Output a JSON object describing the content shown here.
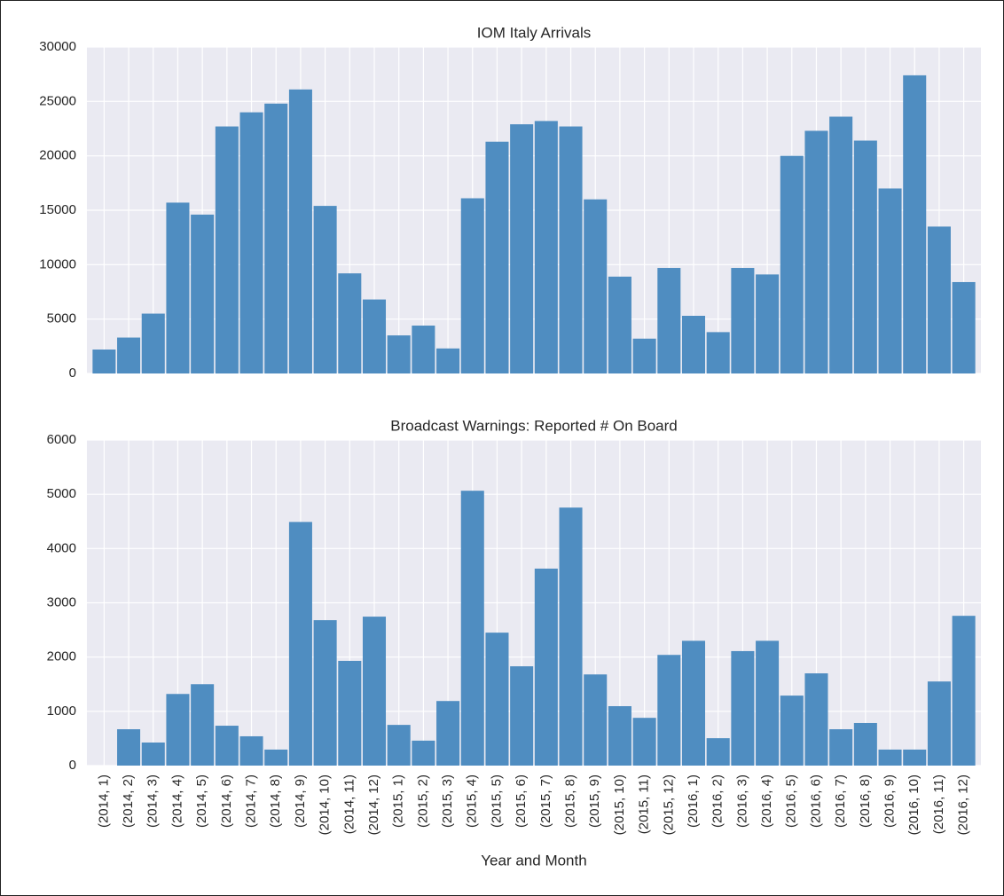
{
  "chart_data": [
    {
      "type": "bar",
      "title": "IOM Italy Arrivals",
      "color": "#4f8dc1",
      "values": [
        2200,
        3300,
        5500,
        15700,
        14600,
        22700,
        24000,
        24800,
        26100,
        15400,
        9200,
        6800,
        3500,
        4400,
        2300,
        16100,
        21300,
        22900,
        23200,
        22700,
        16000,
        8900,
        3200,
        9700,
        5300,
        3800,
        9700,
        9100,
        20000,
        22300,
        23600,
        21400,
        17000,
        27400,
        13500,
        8400
      ],
      "ylim": [
        0,
        30000
      ],
      "yticks": [
        0,
        5000,
        10000,
        15000,
        20000,
        25000,
        30000
      ],
      "grid": true
    },
    {
      "type": "bar",
      "title": "Broadcast Warnings: Reported # On Board",
      "color": "#4f8dc1",
      "xlabel": "Year and Month",
      "categories": [
        "(2014, 1)",
        "(2014, 2)",
        "(2014, 3)",
        "(2014, 4)",
        "(2014, 5)",
        "(2014, 6)",
        "(2014, 7)",
        "(2014, 8)",
        "(2014, 9)",
        "(2014, 10)",
        "(2014, 11)",
        "(2014, 12)",
        "(2015, 1)",
        "(2015, 2)",
        "(2015, 3)",
        "(2015, 4)",
        "(2015, 5)",
        "(2015, 6)",
        "(2015, 7)",
        "(2015, 8)",
        "(2015, 9)",
        "(2015, 10)",
        "(2015, 11)",
        "(2015, 12)",
        "(2016, 1)",
        "(2016, 2)",
        "(2016, 3)",
        "(2016, 4)",
        "(2016, 5)",
        "(2016, 6)",
        "(2016, 7)",
        "(2016, 8)",
        "(2016, 9)",
        "(2016, 10)",
        "(2016, 11)",
        "(2016, 12)"
      ],
      "values": [
        0,
        670,
        425,
        1320,
        1500,
        735,
        540,
        295,
        4490,
        2680,
        1930,
        2745,
        750,
        460,
        1190,
        5065,
        2450,
        1830,
        3630,
        4755,
        1680,
        1095,
        880,
        2040,
        2300,
        505,
        2110,
        2300,
        1290,
        1700,
        670,
        785,
        295,
        295,
        1550,
        2760
      ],
      "ylim": [
        0,
        6000
      ],
      "yticks": [
        0,
        1000,
        2000,
        3000,
        4000,
        5000,
        6000
      ],
      "grid": true
    }
  ]
}
